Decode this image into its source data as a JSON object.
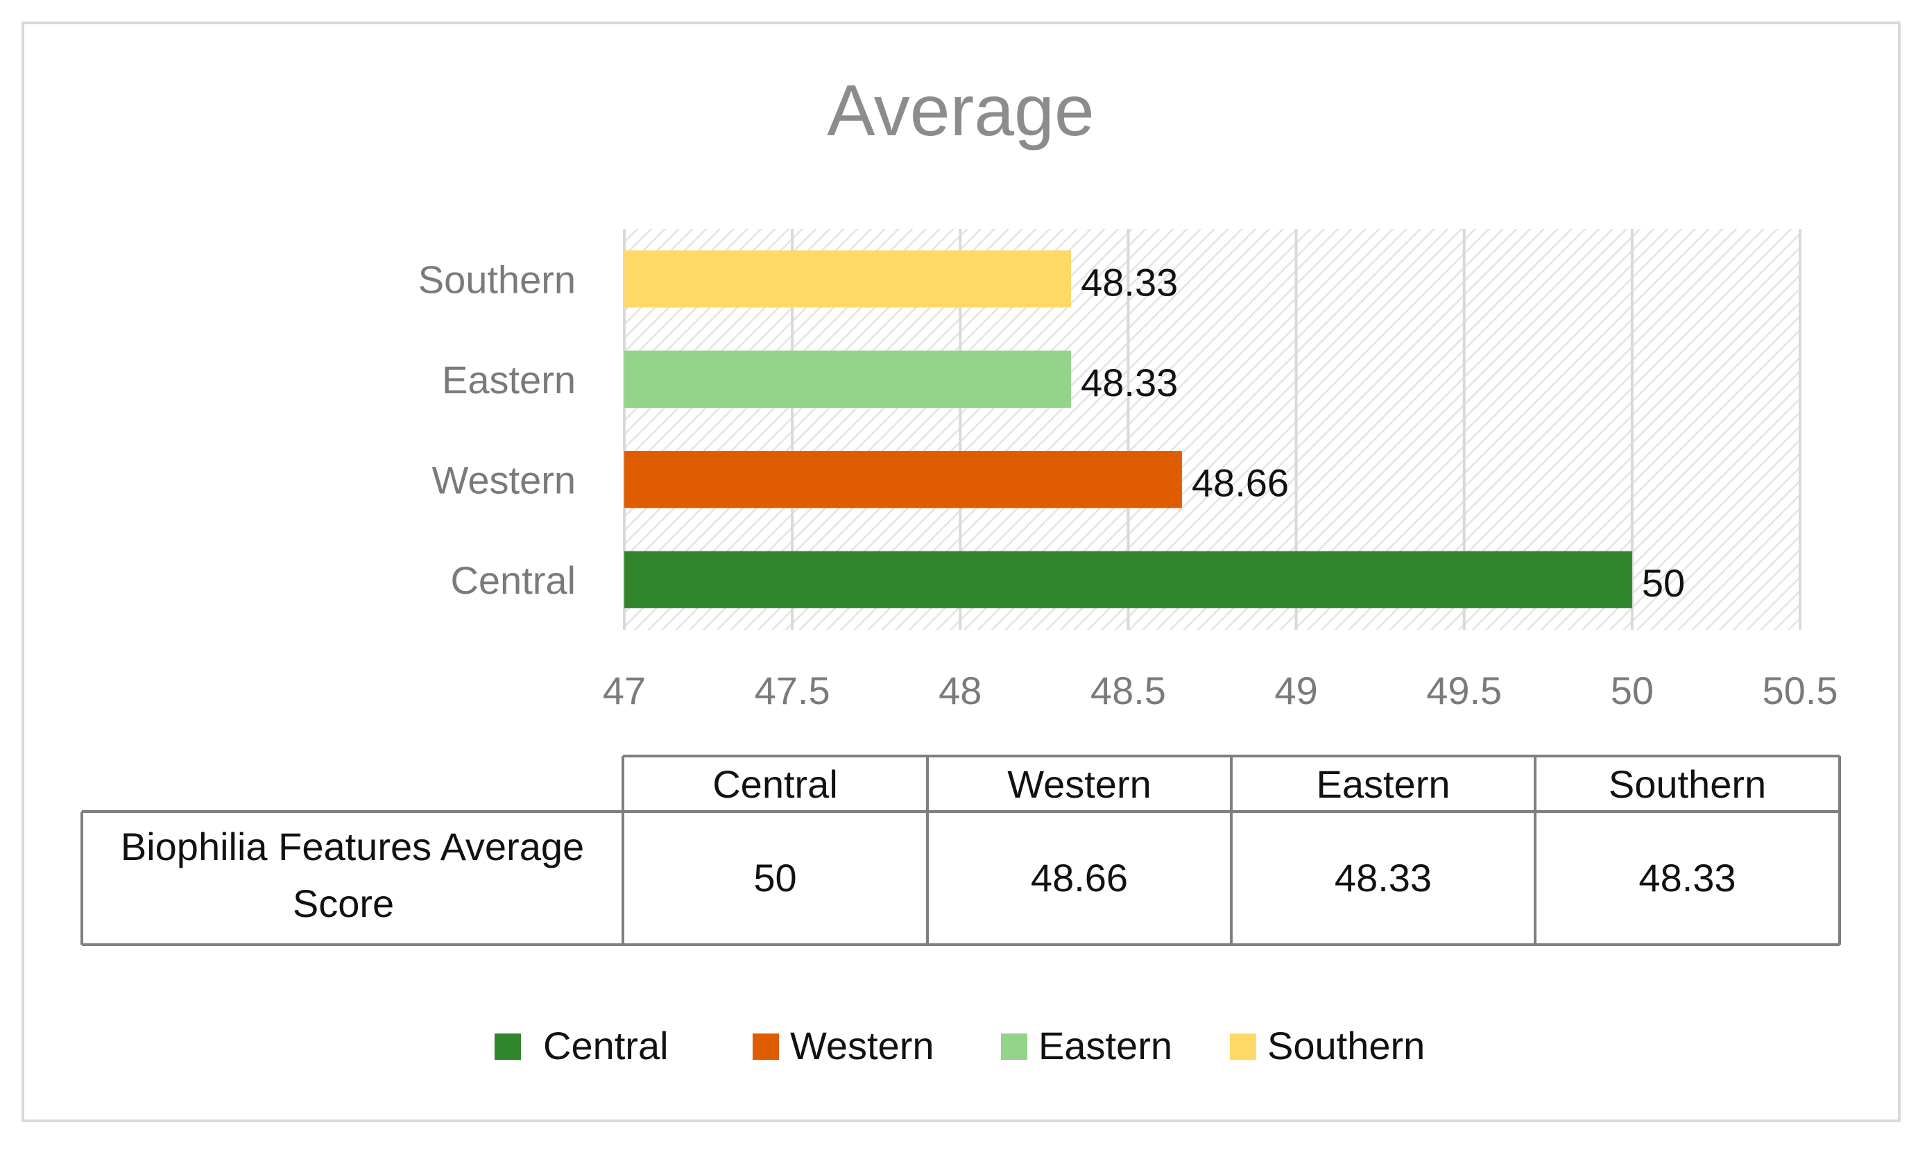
{
  "chart_data": {
    "type": "bar",
    "orientation": "horizontal",
    "title": "Average",
    "categories": [
      "Central",
      "Western",
      "Eastern",
      "Southern"
    ],
    "values": [
      50,
      48.66,
      48.33,
      48.33
    ],
    "value_labels": [
      "50",
      "48.66",
      "48.33",
      "48.33"
    ],
    "colors": [
      "#31862d",
      "#e05c00",
      "#93d38a",
      "#ffd966"
    ],
    "xlim": [
      47,
      50.5
    ],
    "xticks": [
      47,
      47.5,
      48,
      48.5,
      49,
      49.5,
      50,
      50.5
    ],
    "xtick_labels": [
      "47",
      "47.5",
      "48",
      "48.5",
      "49",
      "49.5",
      "50",
      "50.5"
    ],
    "grid": "vertical",
    "plot_background": "diagonal-hatch",
    "legend": {
      "position": "bottom",
      "entries": [
        "Central",
        "Western",
        "Eastern",
        "Southern"
      ]
    },
    "data_table": {
      "row_label": "Biophilia Features Average Score",
      "columns": [
        "Central",
        "Western",
        "Eastern",
        "Southern"
      ],
      "values": [
        "50",
        "48.66",
        "48.33",
        "48.33"
      ]
    }
  }
}
